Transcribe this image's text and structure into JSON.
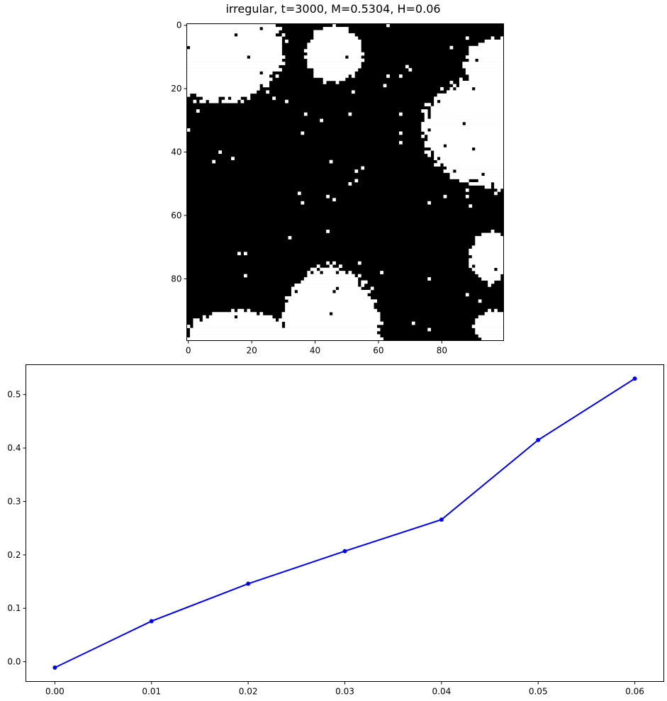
{
  "chart_data": [
    {
      "type": "heatmap",
      "title": "irregular, t=3000, M=0.5304, H=0.06",
      "grid_size": [
        100,
        100
      ],
      "colormap": {
        "up_spin": "#ffffff",
        "down_spin": "#000000"
      },
      "xlim": [
        0,
        99
      ],
      "ylim": [
        0,
        99
      ],
      "y_inverted": true,
      "xticks": [
        0,
        20,
        40,
        60,
        80
      ],
      "yticks": [
        0,
        20,
        40,
        60,
        80
      ],
      "white_regions": [
        {
          "kind": "ellipse",
          "cx": 10,
          "cy": 7,
          "rx": 20,
          "ry": 17
        },
        {
          "kind": "ellipse",
          "cx": 46,
          "cy": 9,
          "rx": 9,
          "ry": 9
        },
        {
          "kind": "ellipse",
          "cx": 99,
          "cy": 33,
          "rx": 25,
          "ry": 18
        },
        {
          "kind": "ellipse",
          "cx": 99,
          "cy": 12,
          "rx": 12,
          "ry": 8
        },
        {
          "kind": "ellipse",
          "cx": 45,
          "cy": 100,
          "rx": 16,
          "ry": 24
        },
        {
          "kind": "ellipse",
          "cx": 15,
          "cy": 98,
          "rx": 16,
          "ry": 8
        },
        {
          "kind": "ellipse",
          "cx": 95,
          "cy": 73,
          "rx": 6,
          "ry": 8
        },
        {
          "kind": "ellipse",
          "cx": 98,
          "cy": 95,
          "rx": 8,
          "ry": 5
        }
      ],
      "isolated_fraction": 0.006
    },
    {
      "type": "line",
      "title": "",
      "xlabel": "",
      "ylabel": "",
      "x": [
        0.0,
        0.01,
        0.02,
        0.03,
        0.04,
        0.05,
        0.06
      ],
      "series": [
        {
          "values": [
            -0.011,
            0.076,
            0.146,
            0.207,
            0.266,
            0.415,
            0.53
          ],
          "color": "#0000ff",
          "marker": "circle"
        }
      ],
      "xlim": [
        -0.003,
        0.063
      ],
      "ylim": [
        -0.037,
        0.556
      ],
      "xticks": [
        "0.00",
        "0.01",
        "0.02",
        "0.03",
        "0.04",
        "0.05",
        "0.06"
      ],
      "yticks": [
        "0.0",
        "0.1",
        "0.2",
        "0.3",
        "0.4",
        "0.5"
      ],
      "grid": false,
      "legend": "none"
    }
  ]
}
